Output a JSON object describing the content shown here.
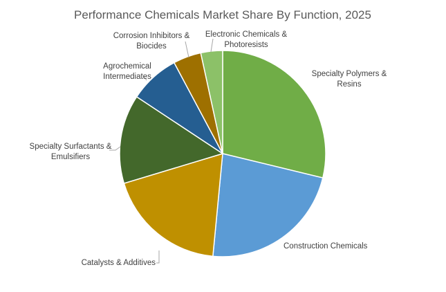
{
  "chart_data": {
    "type": "pie",
    "title": "Performance Chemicals Market Share By Function, 2025",
    "slices": [
      {
        "name": "Specialty Polymers & Resins",
        "value": 29.5,
        "color": "#70ad47"
      },
      {
        "name": "Construction Chemicals",
        "value": 23.3,
        "color": "#5b9bd5"
      },
      {
        "name": "Catalysts & Additives",
        "value": 19.3,
        "color": "#bf9000"
      },
      {
        "name": "Specialty Surfactants & Emulsifiers",
        "value": 14.3,
        "color": "#43682b"
      },
      {
        "name": "Agrochemical Intermediates",
        "value": 8.1,
        "color": "#255e91"
      },
      {
        "name": "Corrosion Inhibitors & Biocides",
        "value": 4.5,
        "color": "#9e7000"
      },
      {
        "name": "Electronic Chemicals & Photoresists",
        "value": 3.5,
        "color": "#8cc168"
      }
    ],
    "legend": "none",
    "data_labels": "category names outside with leader lines"
  }
}
